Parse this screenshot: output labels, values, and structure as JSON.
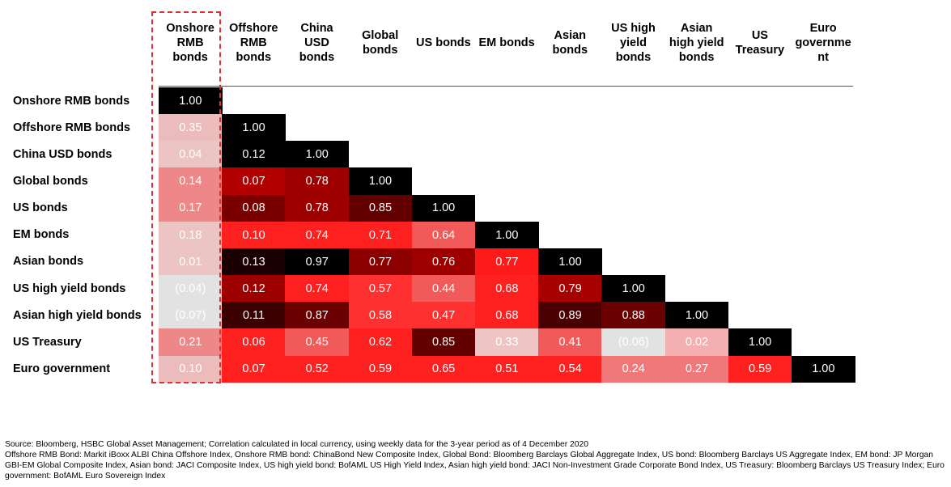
{
  "chart_data": {
    "type": "heatmap",
    "title": "",
    "columns": [
      "Onshore RMB bonds",
      "Offshore RMB bonds",
      "China USD bonds",
      "Global bonds",
      "US bonds",
      "EM bonds",
      "Asian bonds",
      "US high yield bonds",
      "Asian high yield bonds",
      "US Treasury",
      "Euro government"
    ],
    "rows": [
      "Onshore RMB bonds",
      "Offshore RMB bonds",
      "China USD bonds",
      "Global bonds",
      "US bonds",
      "EM bonds",
      "Asian bonds",
      "US high yield bonds",
      "Asian high yield bonds",
      "US Treasury",
      "Euro government"
    ],
    "values": [
      [
        1.0
      ],
      [
        0.35,
        1.0
      ],
      [
        0.04,
        0.12,
        1.0
      ],
      [
        0.14,
        0.07,
        0.78,
        1.0
      ],
      [
        0.17,
        0.08,
        0.78,
        0.85,
        1.0
      ],
      [
        0.18,
        0.1,
        0.74,
        0.71,
        0.64,
        1.0
      ],
      [
        0.01,
        0.13,
        0.97,
        0.77,
        0.76,
        0.77,
        1.0
      ],
      [
        -0.04,
        0.12,
        0.74,
        0.57,
        0.44,
        0.68,
        0.79,
        1.0
      ],
      [
        -0.07,
        0.11,
        0.87,
        0.58,
        0.47,
        0.68,
        0.89,
        0.88,
        1.0
      ],
      [
        0.21,
        0.06,
        0.45,
        0.62,
        0.85,
        0.33,
        0.41,
        -0.06,
        0.02,
        1.0
      ],
      [
        0.1,
        0.07,
        0.52,
        0.59,
        0.65,
        0.51,
        0.54,
        0.24,
        0.27,
        0.59,
        1.0
      ]
    ],
    "labels": [
      [
        "1.00"
      ],
      [
        "0.35",
        "1.00"
      ],
      [
        "0.04",
        "0.12",
        "1.00"
      ],
      [
        "0.14",
        "0.07",
        "0.78",
        "1.00"
      ],
      [
        "0.17",
        "0.08",
        "0.78",
        "0.85",
        "1.00"
      ],
      [
        "0.18",
        "0.10",
        "0.74",
        "0.71",
        "0.64",
        "1.00"
      ],
      [
        "0.01",
        "0.13",
        "0.97",
        "0.77",
        "0.76",
        "0.77",
        "1.00"
      ],
      [
        "(0.04)",
        "0.12",
        "0.74",
        "0.57",
        "0.44",
        "0.68",
        "0.79",
        "1.00"
      ],
      [
        "(0.07)",
        "0.11",
        "0.87",
        "0.58",
        "0.47",
        "0.68",
        "0.89",
        "0.88",
        "1.00"
      ],
      [
        "0.21",
        "0.06",
        "0.45",
        "0.62",
        "0.85",
        "0.33",
        "0.41",
        "(0.06)",
        "0.02",
        "1.00"
      ],
      [
        "0.10",
        "0.07",
        "0.52",
        "0.59",
        "0.65",
        "0.51",
        "0.54",
        "0.24",
        "0.27",
        "0.59",
        "1.00"
      ]
    ],
    "colors": [
      [
        "#000000"
      ],
      [
        "#ecbcbc",
        "#000000"
      ],
      [
        "#ecc4c4",
        "#000000",
        "#000000"
      ],
      [
        "#ee8888",
        "#b30000",
        "#9e0000",
        "#000000"
      ],
      [
        "#ee8888",
        "#7a0000",
        "#9e0000",
        "#620000",
        "#000000"
      ],
      [
        "#ecc4c4",
        "#ff2020",
        "#ff2020",
        "#ff2020",
        "#f25a5a",
        "#000000"
      ],
      [
        "#ecc4c4",
        "#1a0000",
        "#000000",
        "#8c0000",
        "#9e0000",
        "#ff1a1a",
        "#000000"
      ],
      [
        "#e2e2e2",
        "#9e0000",
        "#ff2020",
        "#ff3030",
        "#f25a5a",
        "#ff2020",
        "#a80000",
        "#000000"
      ],
      [
        "#e2e2e2",
        "#3a0000",
        "#6a0000",
        "#ff3030",
        "#ff3030",
        "#ff2020",
        "#4a0000",
        "#6a0000",
        "#000000"
      ],
      [
        "#ee8888",
        "#ff2020",
        "#f25a5a",
        "#ff2020",
        "#620000",
        "#eec4c4",
        "#f25a5a",
        "#e2e2e2",
        "#f4b0b0",
        "#000000"
      ],
      [
        "#ecbcbc",
        "#ff2020",
        "#ff2020",
        "#ff2020",
        "#ff2020",
        "#ff2020",
        "#ff2020",
        "#f07878",
        "#f07878",
        "#ff2020",
        "#000000"
      ]
    ],
    "highlight_column": "Onshore RMB bonds",
    "highlight_color": "#e03030"
  },
  "headers": {
    "columns": [
      [
        "Onshore",
        "RMB",
        "bonds"
      ],
      [
        "Offshore",
        "RMB",
        "bonds"
      ],
      [
        "China",
        "USD",
        "bonds"
      ],
      [
        "Global",
        "bonds"
      ],
      [
        "US bonds"
      ],
      [
        "EM bonds"
      ],
      [
        "Asian",
        "bonds"
      ],
      [
        "US high",
        "yield",
        "bonds"
      ],
      [
        "Asian",
        "high yield",
        "bonds"
      ],
      [
        "US",
        "Treasury"
      ],
      [
        "Euro",
        "governme",
        "nt"
      ]
    ]
  },
  "notes": {
    "source": "Source: Bloomberg, HSBC Global Asset Management; Correlation calculated in local currency, using weekly data for the 3-year period as of 4 December 2020",
    "definitions": "Offshore RMB Bond: Markit iBoxx ALBI China Offshore Index, Onshore RMB bond: ChinaBond New Composite Index, Global Bond: Bloomberg Barclays Global Aggregate Index, US bond: Bloomberg Barclays US Aggregate Index, EM bond: JP Morgan GBI-EM Global Composite Index, Asian bond: JACI Composite Index, US high yield bond: BofAML US High Yield Index, Asian high yield bond: JACI Non-Investment Grade Corporate Bond Index, US Treasury: Bloomberg Barclays US Treasury Index; Euro government: BofAML Euro Sovereign Index"
  }
}
